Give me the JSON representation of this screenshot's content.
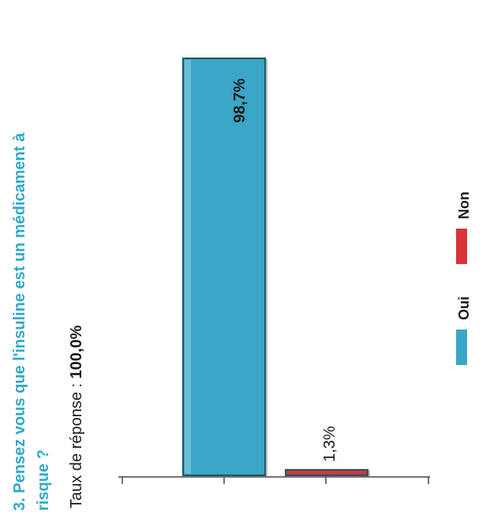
{
  "question": {
    "line1": "3. Pensez vous que l'insuline est un médicament à",
    "line2": "risque ?"
  },
  "response_rate": {
    "label": "Taux de réponse : ",
    "value": "100,0%"
  },
  "colors": {
    "title": "#33a9c9",
    "oui": "#3aa6c8",
    "non": "#d9343a",
    "axis": "#444444"
  },
  "chart_data": {
    "type": "bar",
    "orientation": "rotated-90-ccw",
    "categories": [
      "Oui",
      "Non"
    ],
    "values": [
      98.7,
      1.3
    ],
    "data_labels": [
      "98,7%",
      "1,3%"
    ],
    "ylim": [
      0,
      100
    ],
    "legend": {
      "placement": "right",
      "entries": [
        "Oui",
        "Non"
      ]
    }
  }
}
